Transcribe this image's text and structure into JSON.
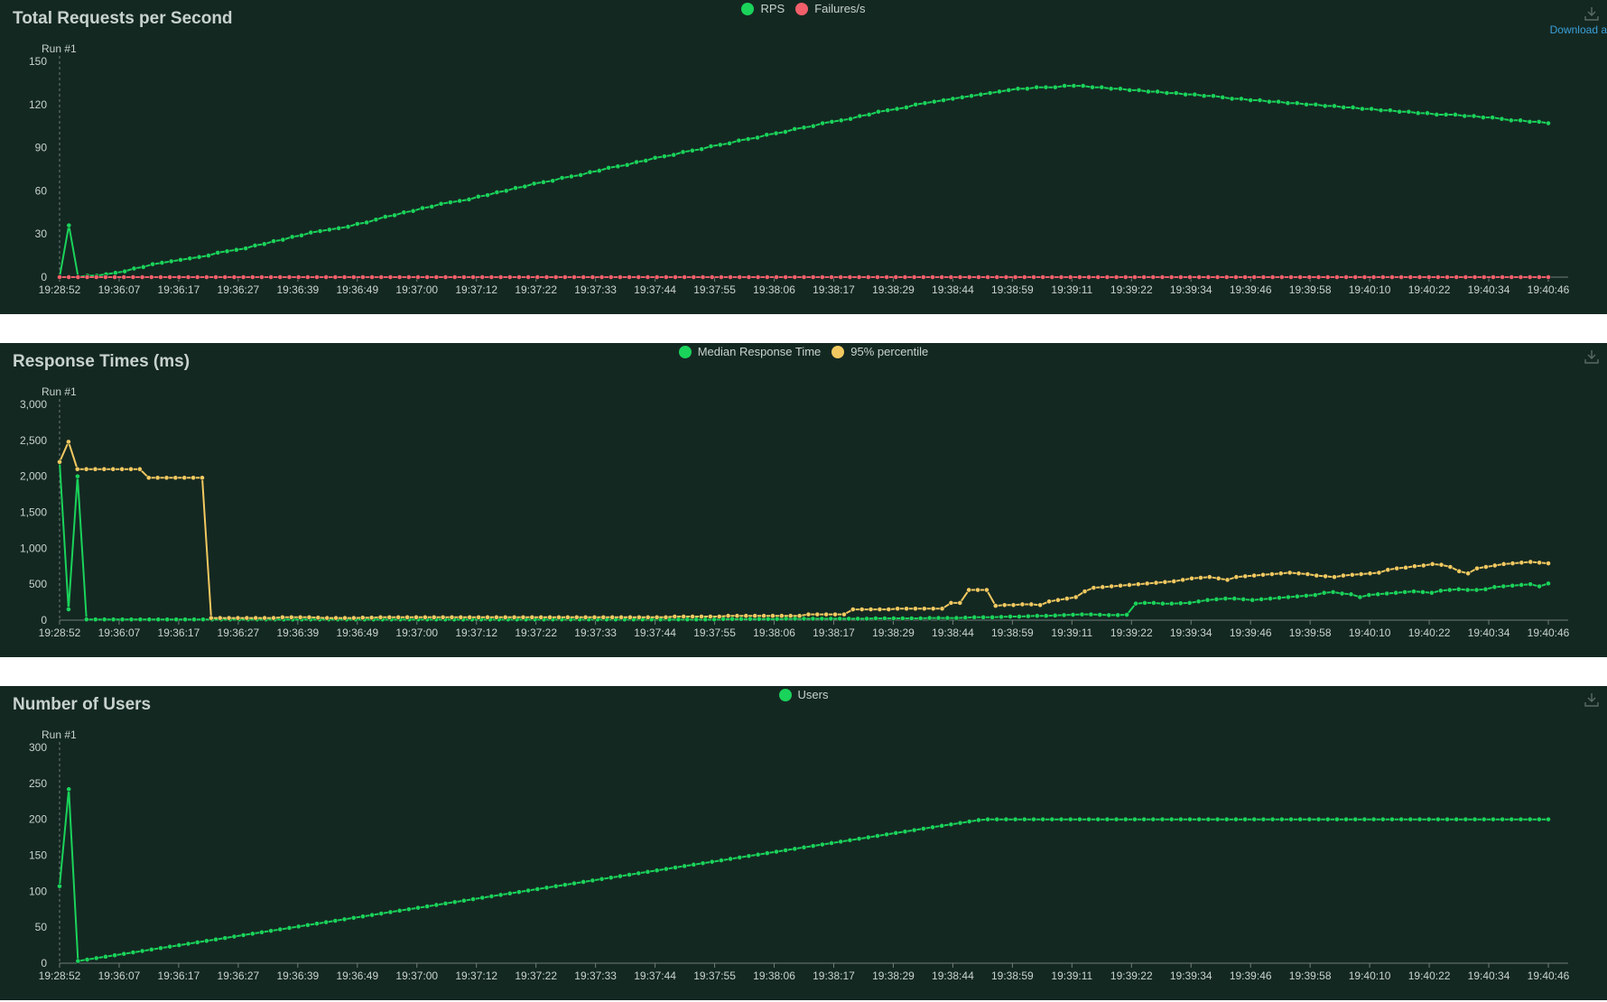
{
  "download_label": "Download a",
  "colors": {
    "background": "#142822",
    "text": "#c8d2cd",
    "rps": "#1ad35a",
    "failures": "#f25f6a",
    "median": "#1ad35a",
    "p95": "#f2c960",
    "users": "#1ad35a"
  },
  "run_label": "Run #1",
  "chart_data": [
    {
      "type": "line",
      "title": "Total Requests per Second",
      "ylim": [
        0,
        150
      ],
      "yticks": [
        "0",
        "30",
        "60",
        "90",
        "120",
        "150"
      ],
      "xticks": [
        "19:28:52",
        "19:36:07",
        "19:36:17",
        "19:36:27",
        "19:36:39",
        "19:36:49",
        "19:37:00",
        "19:37:12",
        "19:37:22",
        "19:37:33",
        "19:37:44",
        "19:37:55",
        "19:38:06",
        "19:38:17",
        "19:38:29",
        "19:38:44",
        "19:38:59",
        "19:39:11",
        "19:39:22",
        "19:39:34",
        "19:39:46",
        "19:39:58",
        "19:40:10",
        "19:40:22",
        "19:40:34",
        "19:40:46"
      ],
      "legend": "top-center",
      "series": [
        {
          "name": "RPS",
          "values": [
            0,
            36,
            0,
            1,
            1,
            2,
            3,
            4,
            6,
            7,
            9,
            10,
            11,
            12,
            13,
            14,
            15,
            17,
            18,
            19,
            20,
            22,
            23,
            25,
            26,
            28,
            29,
            31,
            32,
            33,
            34,
            35,
            37,
            38,
            40,
            42,
            43,
            45,
            46,
            48,
            49,
            51,
            52,
            53,
            54,
            56,
            57,
            59,
            60,
            62,
            63,
            65,
            66,
            67,
            69,
            70,
            71,
            73,
            74,
            76,
            77,
            78,
            80,
            81,
            83,
            84,
            85,
            87,
            88,
            89,
            91,
            92,
            93,
            95,
            96,
            97,
            99,
            100,
            101,
            103,
            104,
            105,
            107,
            108,
            109,
            110,
            112,
            113,
            115,
            116,
            117,
            118,
            120,
            121,
            122,
            123,
            124,
            125,
            126,
            127,
            128,
            129,
            130,
            131,
            131,
            132,
            132,
            132,
            133,
            133,
            133,
            132,
            132,
            131,
            131,
            130,
            130,
            129,
            129,
            128,
            128,
            127,
            127,
            126,
            126,
            125,
            124,
            124,
            123,
            123,
            122,
            122,
            121,
            121,
            120,
            120,
            119,
            119,
            118,
            118,
            117,
            117,
            116,
            116,
            115,
            115,
            114,
            114,
            113,
            113,
            113,
            112,
            112,
            111,
            111,
            110,
            109,
            109,
            108,
            108,
            107
          ]
        },
        {
          "name": "Failures/s",
          "values": [
            0,
            0,
            0,
            0,
            0,
            0,
            0,
            0,
            0,
            0,
            0,
            0,
            0,
            0,
            0,
            0,
            0,
            0,
            0,
            0,
            0,
            0,
            0,
            0,
            0,
            0,
            0,
            0,
            0,
            0,
            0,
            0,
            0,
            0,
            0,
            0,
            0,
            0,
            0,
            0,
            0,
            0,
            0,
            0,
            0,
            0,
            0,
            0,
            0,
            0,
            0,
            0,
            0,
            0,
            0,
            0,
            0,
            0,
            0,
            0,
            0,
            0,
            0,
            0,
            0,
            0,
            0,
            0,
            0,
            0,
            0,
            0,
            0,
            0,
            0,
            0,
            0,
            0,
            0,
            0,
            0,
            0,
            0,
            0,
            0,
            0,
            0,
            0,
            0,
            0,
            0,
            0,
            0,
            0,
            0,
            0,
            0,
            0,
            0,
            0,
            0,
            0,
            0,
            0,
            0,
            0,
            0,
            0,
            0,
            0,
            0,
            0,
            0,
            0,
            0,
            0,
            0,
            0,
            0,
            0,
            0,
            0,
            0,
            0,
            0,
            0,
            0,
            0,
            0,
            0,
            0,
            0,
            0,
            0,
            0,
            0,
            0,
            0,
            0,
            0,
            0,
            0,
            0,
            0,
            0,
            0,
            0,
            0,
            0,
            0,
            0,
            0,
            0,
            0,
            0,
            0,
            0,
            0,
            0,
            0,
            0,
            0,
            0
          ]
        }
      ]
    },
    {
      "type": "line",
      "title": "Response Times (ms)",
      "ylim": [
        0,
        3000
      ],
      "yticks": [
        "0",
        "500",
        "1,000",
        "1,500",
        "2,000",
        "2,500",
        "3,000"
      ],
      "xticks": [
        "19:28:52",
        "19:36:07",
        "19:36:17",
        "19:36:27",
        "19:36:39",
        "19:36:49",
        "19:37:00",
        "19:37:12",
        "19:37:22",
        "19:37:33",
        "19:37:44",
        "19:37:55",
        "19:38:06",
        "19:38:17",
        "19:38:29",
        "19:38:44",
        "19:38:59",
        "19:39:11",
        "19:39:22",
        "19:39:34",
        "19:39:46",
        "19:39:58",
        "19:40:10",
        "19:40:22",
        "19:40:34",
        "19:40:46"
      ],
      "legend": "top-center",
      "series": [
        {
          "name": "Median Response Time",
          "values": [
            2200,
            150,
            2000,
            10,
            10,
            10,
            10,
            10,
            10,
            10,
            10,
            10,
            10,
            10,
            10,
            10,
            10,
            10,
            10,
            10,
            10,
            10,
            10,
            10,
            10,
            10,
            10,
            10,
            10,
            10,
            10,
            10,
            10,
            10,
            10,
            10,
            10,
            10,
            10,
            10,
            10,
            10,
            10,
            10,
            10,
            10,
            10,
            10,
            10,
            10,
            10,
            10,
            10,
            10,
            10,
            10,
            10,
            10,
            10,
            10,
            10,
            10,
            10,
            10,
            10,
            10,
            10,
            10,
            10,
            10,
            10,
            10,
            10,
            10,
            15,
            15,
            15,
            15,
            15,
            15,
            15,
            20,
            20,
            20,
            20,
            20,
            20,
            20,
            20,
            20,
            20,
            25,
            25,
            25,
            25,
            25,
            25,
            30,
            30,
            30,
            30,
            35,
            40,
            40,
            40,
            45,
            50,
            50,
            55,
            60,
            60,
            65,
            70,
            75,
            80,
            80,
            75,
            70,
            70,
            75,
            230,
            240,
            240,
            230,
            230,
            235,
            240,
            260,
            280,
            290,
            300,
            300,
            290,
            280,
            290,
            300,
            310,
            320,
            330,
            340,
            350,
            380,
            390,
            370,
            360,
            320,
            350,
            360,
            370,
            380,
            390,
            400,
            390,
            380,
            410,
            420,
            430,
            420,
            420,
            430,
            460,
            470,
            480,
            490,
            500,
            470,
            510
          ]
        },
        {
          "name": "95% percentile",
          "values": [
            2200,
            2480,
            2100,
            2100,
            2100,
            2100,
            2100,
            2100,
            2100,
            2100,
            1980,
            1980,
            1980,
            1980,
            1980,
            1980,
            1980,
            30,
            30,
            30,
            30,
            30,
            30,
            30,
            30,
            40,
            40,
            40,
            40,
            35,
            30,
            30,
            30,
            30,
            35,
            35,
            40,
            40,
            40,
            40,
            40,
            40,
            40,
            40,
            40,
            40,
            40,
            40,
            40,
            40,
            40,
            40,
            40,
            40,
            40,
            40,
            40,
            40,
            40,
            40,
            40,
            40,
            40,
            40,
            40,
            40,
            40,
            40,
            40,
            50,
            50,
            50,
            50,
            50,
            50,
            60,
            60,
            60,
            60,
            60,
            60,
            60,
            60,
            60,
            80,
            80,
            80,
            80,
            80,
            150,
            150,
            150,
            150,
            150,
            160,
            160,
            160,
            160,
            160,
            160,
            240,
            240,
            420,
            420,
            420,
            200,
            210,
            210,
            220,
            220,
            210,
            260,
            280,
            300,
            320,
            400,
            450,
            460,
            470,
            480,
            490,
            500,
            510,
            520,
            530,
            540,
            560,
            580,
            590,
            600,
            580,
            560,
            600,
            610,
            620,
            630,
            640,
            650,
            660,
            650,
            640,
            620,
            610,
            600,
            620,
            630,
            640,
            650,
            660,
            700,
            720,
            730,
            750,
            760,
            780,
            770,
            740,
            680,
            650,
            720,
            740,
            760,
            780,
            790,
            800,
            810,
            800,
            790
          ]
        }
      ]
    },
    {
      "type": "line",
      "title": "Number of Users",
      "ylim": [
        0,
        300
      ],
      "yticks": [
        "0",
        "50",
        "100",
        "150",
        "200",
        "250",
        "300"
      ],
      "xticks": [
        "19:28:52",
        "19:36:07",
        "19:36:17",
        "19:36:27",
        "19:36:39",
        "19:36:49",
        "19:37:00",
        "19:37:12",
        "19:37:22",
        "19:37:33",
        "19:37:44",
        "19:37:55",
        "19:38:06",
        "19:38:17",
        "19:38:29",
        "19:38:44",
        "19:38:59",
        "19:39:11",
        "19:39:22",
        "19:39:34",
        "19:39:46",
        "19:39:58",
        "19:40:10",
        "19:40:22",
        "19:40:34",
        "19:40:46"
      ],
      "legend": "top-center",
      "series": [
        {
          "name": "Users",
          "values": [
            107,
            242,
            3,
            5,
            7,
            9,
            11,
            13,
            15,
            17,
            19,
            21,
            23,
            25,
            27,
            29,
            31,
            33,
            35,
            37,
            39,
            41,
            43,
            45,
            47,
            49,
            51,
            53,
            55,
            57,
            59,
            61,
            63,
            65,
            67,
            69,
            71,
            73,
            75,
            77,
            79,
            81,
            83,
            85,
            87,
            89,
            91,
            93,
            95,
            97,
            99,
            101,
            103,
            105,
            107,
            109,
            111,
            113,
            115,
            117,
            119,
            121,
            123,
            125,
            127,
            129,
            131,
            133,
            135,
            137,
            139,
            141,
            143,
            145,
            147,
            149,
            151,
            153,
            155,
            157,
            159,
            161,
            163,
            165,
            167,
            169,
            171,
            173,
            175,
            177,
            179,
            181,
            183,
            185,
            187,
            189,
            191,
            193,
            195,
            197,
            199,
            200,
            200,
            200,
            200,
            200,
            200,
            200,
            200,
            200,
            200,
            200,
            200,
            200,
            200,
            200,
            200,
            200,
            200,
            200,
            200,
            200,
            200,
            200,
            200,
            200,
            200,
            200,
            200,
            200,
            200,
            200,
            200,
            200,
            200,
            200,
            200,
            200,
            200,
            200,
            200,
            200,
            200,
            200,
            200,
            200,
            200,
            200,
            200,
            200,
            200,
            200,
            200,
            200,
            200,
            200,
            200,
            200,
            200,
            200,
            200,
            200,
            200
          ]
        }
      ]
    }
  ]
}
